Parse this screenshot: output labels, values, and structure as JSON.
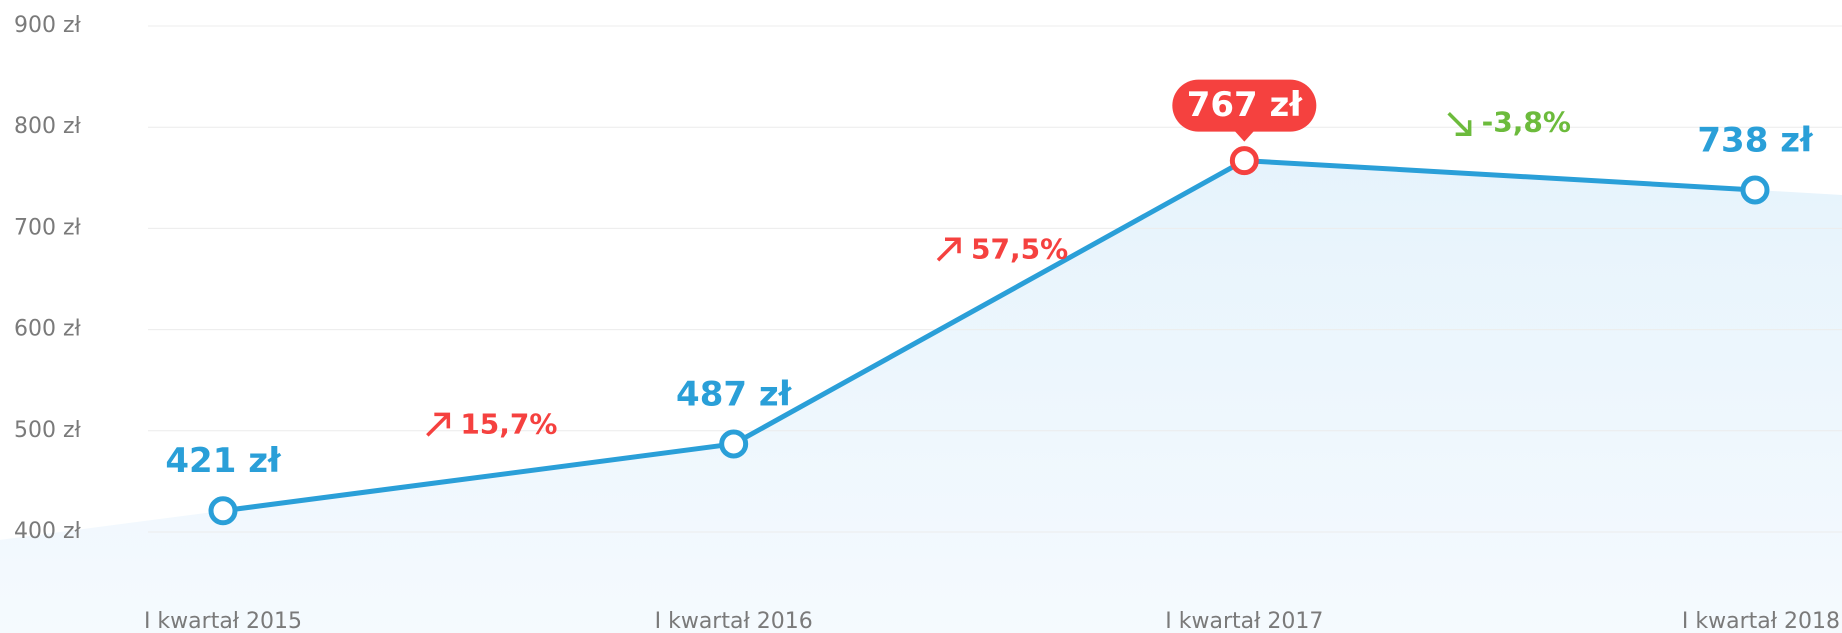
{
  "chart_data": {
    "type": "line",
    "categories": [
      "I kwartał 2015",
      "I kwartał 2016",
      "I kwartał 2017",
      "I kwartał 2018"
    ],
    "series": [
      {
        "color": "#2a9fd8",
        "values": [
          421,
          487,
          767,
          738
        ],
        "value_labels": [
          "421 zł",
          "487 zł",
          "767 zł",
          "738 zł"
        ]
      }
    ],
    "highlight": 2,
    "highlight_color": "#f5413f",
    "ylim": [
      360,
      900
    ],
    "yticks": [
      {
        "value": 400,
        "label": "400 zł"
      },
      {
        "value": 500,
        "label": "500 zł"
      },
      {
        "value": 600,
        "label": "600 zł"
      },
      {
        "value": 700,
        "label": "700 zł"
      },
      {
        "value": 800,
        "label": "800 zł"
      },
      {
        "value": 900,
        "label": "900 zł"
      }
    ],
    "grid": true,
    "annotations": [
      {
        "label": "15,7%",
        "direction": "up",
        "color": "#f5413f"
      },
      {
        "label": "57,5%",
        "direction": "up",
        "color": "#f5413f"
      },
      {
        "label": "-3,8%",
        "direction": "down",
        "color": "#6cbb3c"
      }
    ]
  }
}
